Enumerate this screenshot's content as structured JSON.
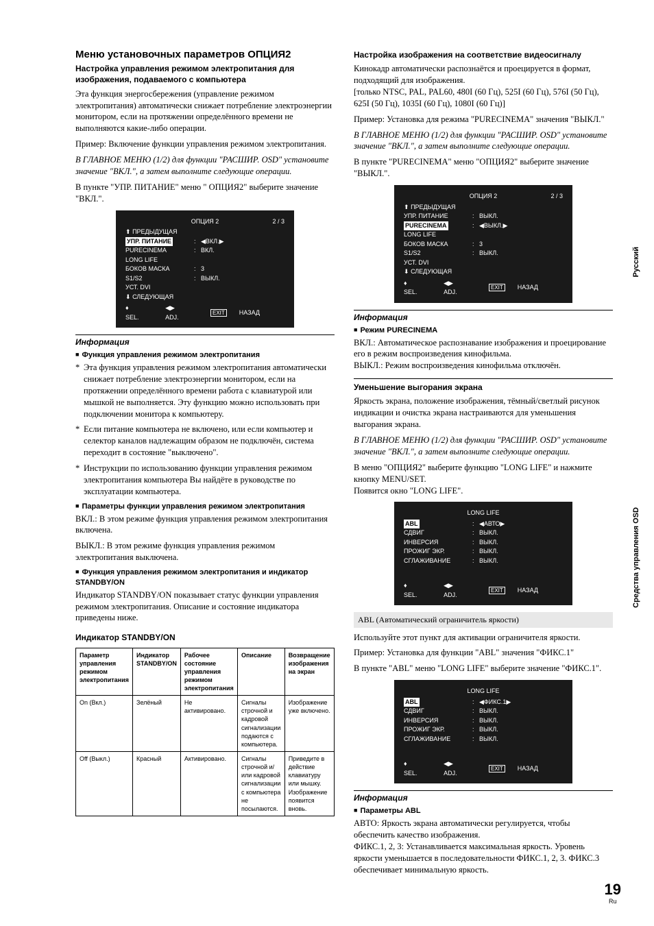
{
  "sideTabs": {
    "lang": "Русский",
    "section": "Средства управления OSD"
  },
  "page": {
    "num": "19",
    "suf": "Ru"
  },
  "left": {
    "title": "Меню установочных параметров   ОПЦИЯ2",
    "h2": "Настройка управления режимом электропитания для изображения, подаваемого с компьютера",
    "p1": "Эта функция энергосбережения (управление режимом электропитания) автоматически снижает потребление электроэнергии монитором, если на протяжении определённого времени не выполняются какие-либо операции.",
    "p2": "Пример: Включение функции управления режимом электропитания.",
    "p3": "В ГЛАВНОЕ МЕНЮ (1/2) для функции \"РАСШИР. OSD\" установите значение \"ВКЛ.\", а затем выполните следующие операции.",
    "p4": "В пункте \"УПР. ПИТАНИЕ\" меню \" ОПЦИЯ2\" выберите значение \"ВКЛ.\".",
    "osd1": {
      "title": "ОПЦИЯ 2",
      "pg": "2 / 3",
      "prev": "ПРЕДЫДУЩАЯ",
      "rows": [
        {
          "l": "УПР. ПИТАНИЕ",
          "inv": true,
          "v": "◀ВКЛ.▶"
        },
        {
          "l": "PURECINEMA",
          "inv": false,
          "v": "ВКЛ."
        },
        {
          "l": "LONG LIFE",
          "inv": false,
          "v": ""
        },
        {
          "l": "БОКОВ МАСКА",
          "inv": false,
          "v": "3"
        },
        {
          "l": "S1/S2",
          "inv": false,
          "v": "ВЫКЛ."
        },
        {
          "l": "УСТ. DVI",
          "inv": false,
          "v": ""
        }
      ],
      "next": "СЛЕДУЮЩАЯ",
      "sel": "SEL.",
      "adj": "ADJ.",
      "exit": "EXIT",
      "back": "НАЗАД"
    },
    "info": "Информация",
    "b1": "Функция управления режимом электропитания",
    "li1": "Эта функция управления режимом электропитания автоматически снижает потребление электроэнергии монитором, если на протяжении определённого времени работа с клавиатурой или мышкой не выполняется. Эту функцию можно использовать при подключении монитора к компьютеру.",
    "li2": "Если питание компьютера не включено, или если компьютер и селектор каналов надлежащим образом не подключён, система переходит в состояние \"выключено\".",
    "li3": "Инструкции по использованию функции управления режимом электропитания компьютера Вы найдёте в руководстве по эксплуатации компьютера.",
    "b2": "Параметры функции управления режимом электропитания",
    "p5": "ВКЛ.: В этом режиме функция управления режимом электропитания включена.",
    "p6": "ВЫКЛ.: В этом режиме функция управления режимом электропитания выключена.",
    "b3": "Функция управления режимом электропитания и индикатор STANDBY/ON",
    "p7": "Индикатор STANDBY/ON показывает статус функции управления режимом электропитания. Описание и состояние индикатора приведены ниже.",
    "tbltitle": "Индикатор STANDBY/ON",
    "table": {
      "h": [
        "Параметр управления режимом электропитания",
        "Индикатор STANDBY/ON",
        "Рабочее состояние управления режимом электропитания",
        "Описание",
        "Возвращение изображения на экран"
      ],
      "r1": [
        "On (Вкл.)",
        "Зелёный",
        "Не активировано.",
        "Сигналы строчной и кадровой сигнализации подаются с компьютера.",
        "Изображение уже включено."
      ],
      "r2": [
        "Off (Выкл.)",
        "Красный",
        "Активировано.",
        "Сигналы строчной и/или кадровой сигнализации с компьютера не посылаются.",
        "Приведите в действие клавиатуру или мышку. Изображение появится вновь."
      ]
    }
  },
  "right": {
    "h2": "Настройка изображения на соответствие видеосигналу",
    "p1": "Кинокадр автоматически распознаётся и проецируется в формат, подходящий для изображения.",
    "p2": "[только NTSC, PAL, PAL60, 480I (60 Гц), 525I (60 Гц), 576I (50 Гц), 625I (50 Гц), 1035I (60 Гц), 1080I (60 Гц)]",
    "p3": "Пример: Установка для режима \"PURECINEMA\" значения \"ВЫКЛ.\"",
    "p4": "В ГЛАВНОЕ МЕНЮ (1/2) для функции \"РАСШИР. OSD\" установите значение \"ВКЛ.\", а затем выполните следующие операции.",
    "p5": "В пункте \"PURECINEMA\" меню \"ОПЦИЯ2\" выберите значение \"ВЫКЛ.\".",
    "osd2": {
      "title": "ОПЦИЯ 2",
      "pg": "2 / 3",
      "prev": "ПРЕДЫДУЩАЯ",
      "rows": [
        {
          "l": "УПР. ПИТАНИЕ",
          "inv": false,
          "v": "ВЫКЛ."
        },
        {
          "l": "PURECINEMA",
          "inv": true,
          "v": "◀ВЫКЛ.▶"
        },
        {
          "l": "LONG LIFE",
          "inv": false,
          "v": ""
        },
        {
          "l": "БОКОВ МАСКА",
          "inv": false,
          "v": "3"
        },
        {
          "l": "S1/S2",
          "inv": false,
          "v": "ВЫКЛ."
        },
        {
          "l": "УСТ. DVI",
          "inv": false,
          "v": ""
        }
      ],
      "next": "СЛЕДУЮЩАЯ",
      "sel": "SEL.",
      "adj": "ADJ.",
      "exit": "EXIT",
      "back": "НАЗАД"
    },
    "info": "Информация",
    "b1": "Режим PURECINEMA",
    "p6": "ВКЛ.: Автоматическое распознавание изображения и проецирование его в режим воспроизведения кинофильма.",
    "p7": "ВЫКЛ.: Режим воспроизведения кинофильма отключён.",
    "h2b": "Уменьшение выгорания экрана",
    "p8": "Яркость экрана, положение изображения, тёмный/светлый рисунок индикации и очистка экрана настраиваются для уменьшения выгорания экрана.",
    "p9": "В ГЛАВНОЕ МЕНЮ (1/2) для функции \"РАСШИР. OSD\" установите значение \"ВКЛ.\", а затем выполните следующие операции.",
    "p10": "В меню \"ОПЦИЯ2\" выберите функцию \"LONG LIFE\" и нажмите кнопку MENU/SET.",
    "p11": "Появится окно \"LONG LIFE\".",
    "osd3": {
      "title": "LONG LIFE",
      "rows": [
        {
          "l": "ABL",
          "inv": true,
          "v": "◀АВТО▶"
        },
        {
          "l": "СДВИГ",
          "inv": false,
          "v": "ВЫКЛ."
        },
        {
          "l": "ИНВЕРСИЯ",
          "inv": false,
          "v": "ВЫКЛ."
        },
        {
          "l": "ПРОЖИГ ЭКР.",
          "inv": false,
          "v": "ВЫКЛ."
        },
        {
          "l": "СГЛАЖИВАНИЕ",
          "inv": false,
          "v": "ВЫКЛ."
        }
      ],
      "sel": "SEL.",
      "adj": "ADJ.",
      "exit": "EXIT",
      "back": "НАЗАД"
    },
    "gray": "ABL (Автоматический ограничитель яркости)",
    "p12": "Используйте этот пункт для активации ограничителя яркости.",
    "p13": "Пример: Установка для функции \"ABL\" значения \"ФИКС.1\"",
    "p14": "В пункте \"ABL\" меню \"LONG LIFE\" выберите значение \"ФИКС.1\".",
    "osd4": {
      "title": "LONG LIFE",
      "rows": [
        {
          "l": "ABL",
          "inv": true,
          "v": "◀ФИКС.1▶"
        },
        {
          "l": "СДВИГ",
          "inv": false,
          "v": "ВЫКЛ."
        },
        {
          "l": "ИНВЕРСИЯ",
          "inv": false,
          "v": "ВЫКЛ."
        },
        {
          "l": "ПРОЖИГ ЭКР.",
          "inv": false,
          "v": "ВЫКЛ."
        },
        {
          "l": "СГЛАЖИВАНИЕ",
          "inv": false,
          "v": "ВЫКЛ."
        }
      ],
      "sel": "SEL.",
      "adj": "ADJ.",
      "exit": "EXIT",
      "back": "НАЗАД"
    },
    "info2": "Информация",
    "b2": "Параметры ABL",
    "p15": "АВТО: Яркость экрана автоматически регулируется, чтобы обеспечить качество изображения.",
    "p16": "ФИКС.1, 2, 3: Устанавливается максимальная яркость. Уровень яркости уменьшается в последовательности ФИКС.1, 2, 3. ФИКС.3 обеспечивает минимальную яркость."
  }
}
